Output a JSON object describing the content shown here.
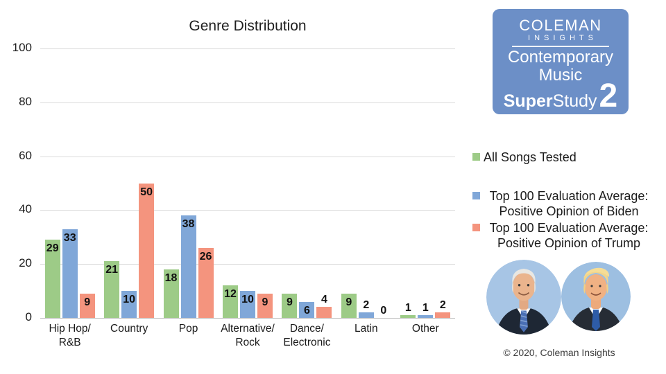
{
  "chart_data": {
    "type": "bar",
    "title": "Genre Distribution",
    "xlabel": "",
    "ylabel": "",
    "ylim": [
      0,
      100
    ],
    "yticks": [
      0,
      20,
      40,
      60,
      80,
      100
    ],
    "grid": true,
    "data_labels": true,
    "legend_position": "right",
    "categories": [
      [
        "Hip Hop/",
        "R&B"
      ],
      [
        "Country"
      ],
      [
        "Pop"
      ],
      [
        "Alternative/",
        "Rock"
      ],
      [
        "Dance/",
        "Electronic"
      ],
      [
        "Latin"
      ],
      [
        "Other"
      ]
    ],
    "series": [
      {
        "name": "All Songs Tested",
        "color": "#9dcb87",
        "values": [
          29,
          21,
          18,
          12,
          9,
          9,
          1
        ]
      },
      {
        "name": "Top 100 Evaluation Average: Positive Opinion of Biden",
        "color": "#80a7d8",
        "values": [
          33,
          10,
          38,
          10,
          6,
          2,
          1
        ]
      },
      {
        "name": "Top 100 Evaluation Average: Positive Opinion of Trump",
        "color": "#f4947e",
        "values": [
          9,
          50,
          26,
          9,
          4,
          0,
          2
        ]
      }
    ]
  },
  "legend": {
    "items": [
      {
        "color": "#9dcb87",
        "lines": [
          "All Songs Tested"
        ]
      },
      {
        "color": "#80a7d8",
        "lines": [
          "Top 100 Evaluation Average:",
          "Positive Opinion of Biden"
        ]
      },
      {
        "color": "#f4947e",
        "lines": [
          "Top 100 Evaluation Average:",
          "Positive Opinion of Trump"
        ]
      }
    ]
  },
  "logo": {
    "bg_color": "#6c8fc7",
    "brand_name": "COLEMAN",
    "brand_sub": "INSIGHTS",
    "line1": "Contemporary",
    "line2": "Music",
    "line3_bold": "Super",
    "line3_regular": "Study",
    "line3_number": "2"
  },
  "footer": {
    "copyright": "© 2020, Coleman Insights"
  }
}
